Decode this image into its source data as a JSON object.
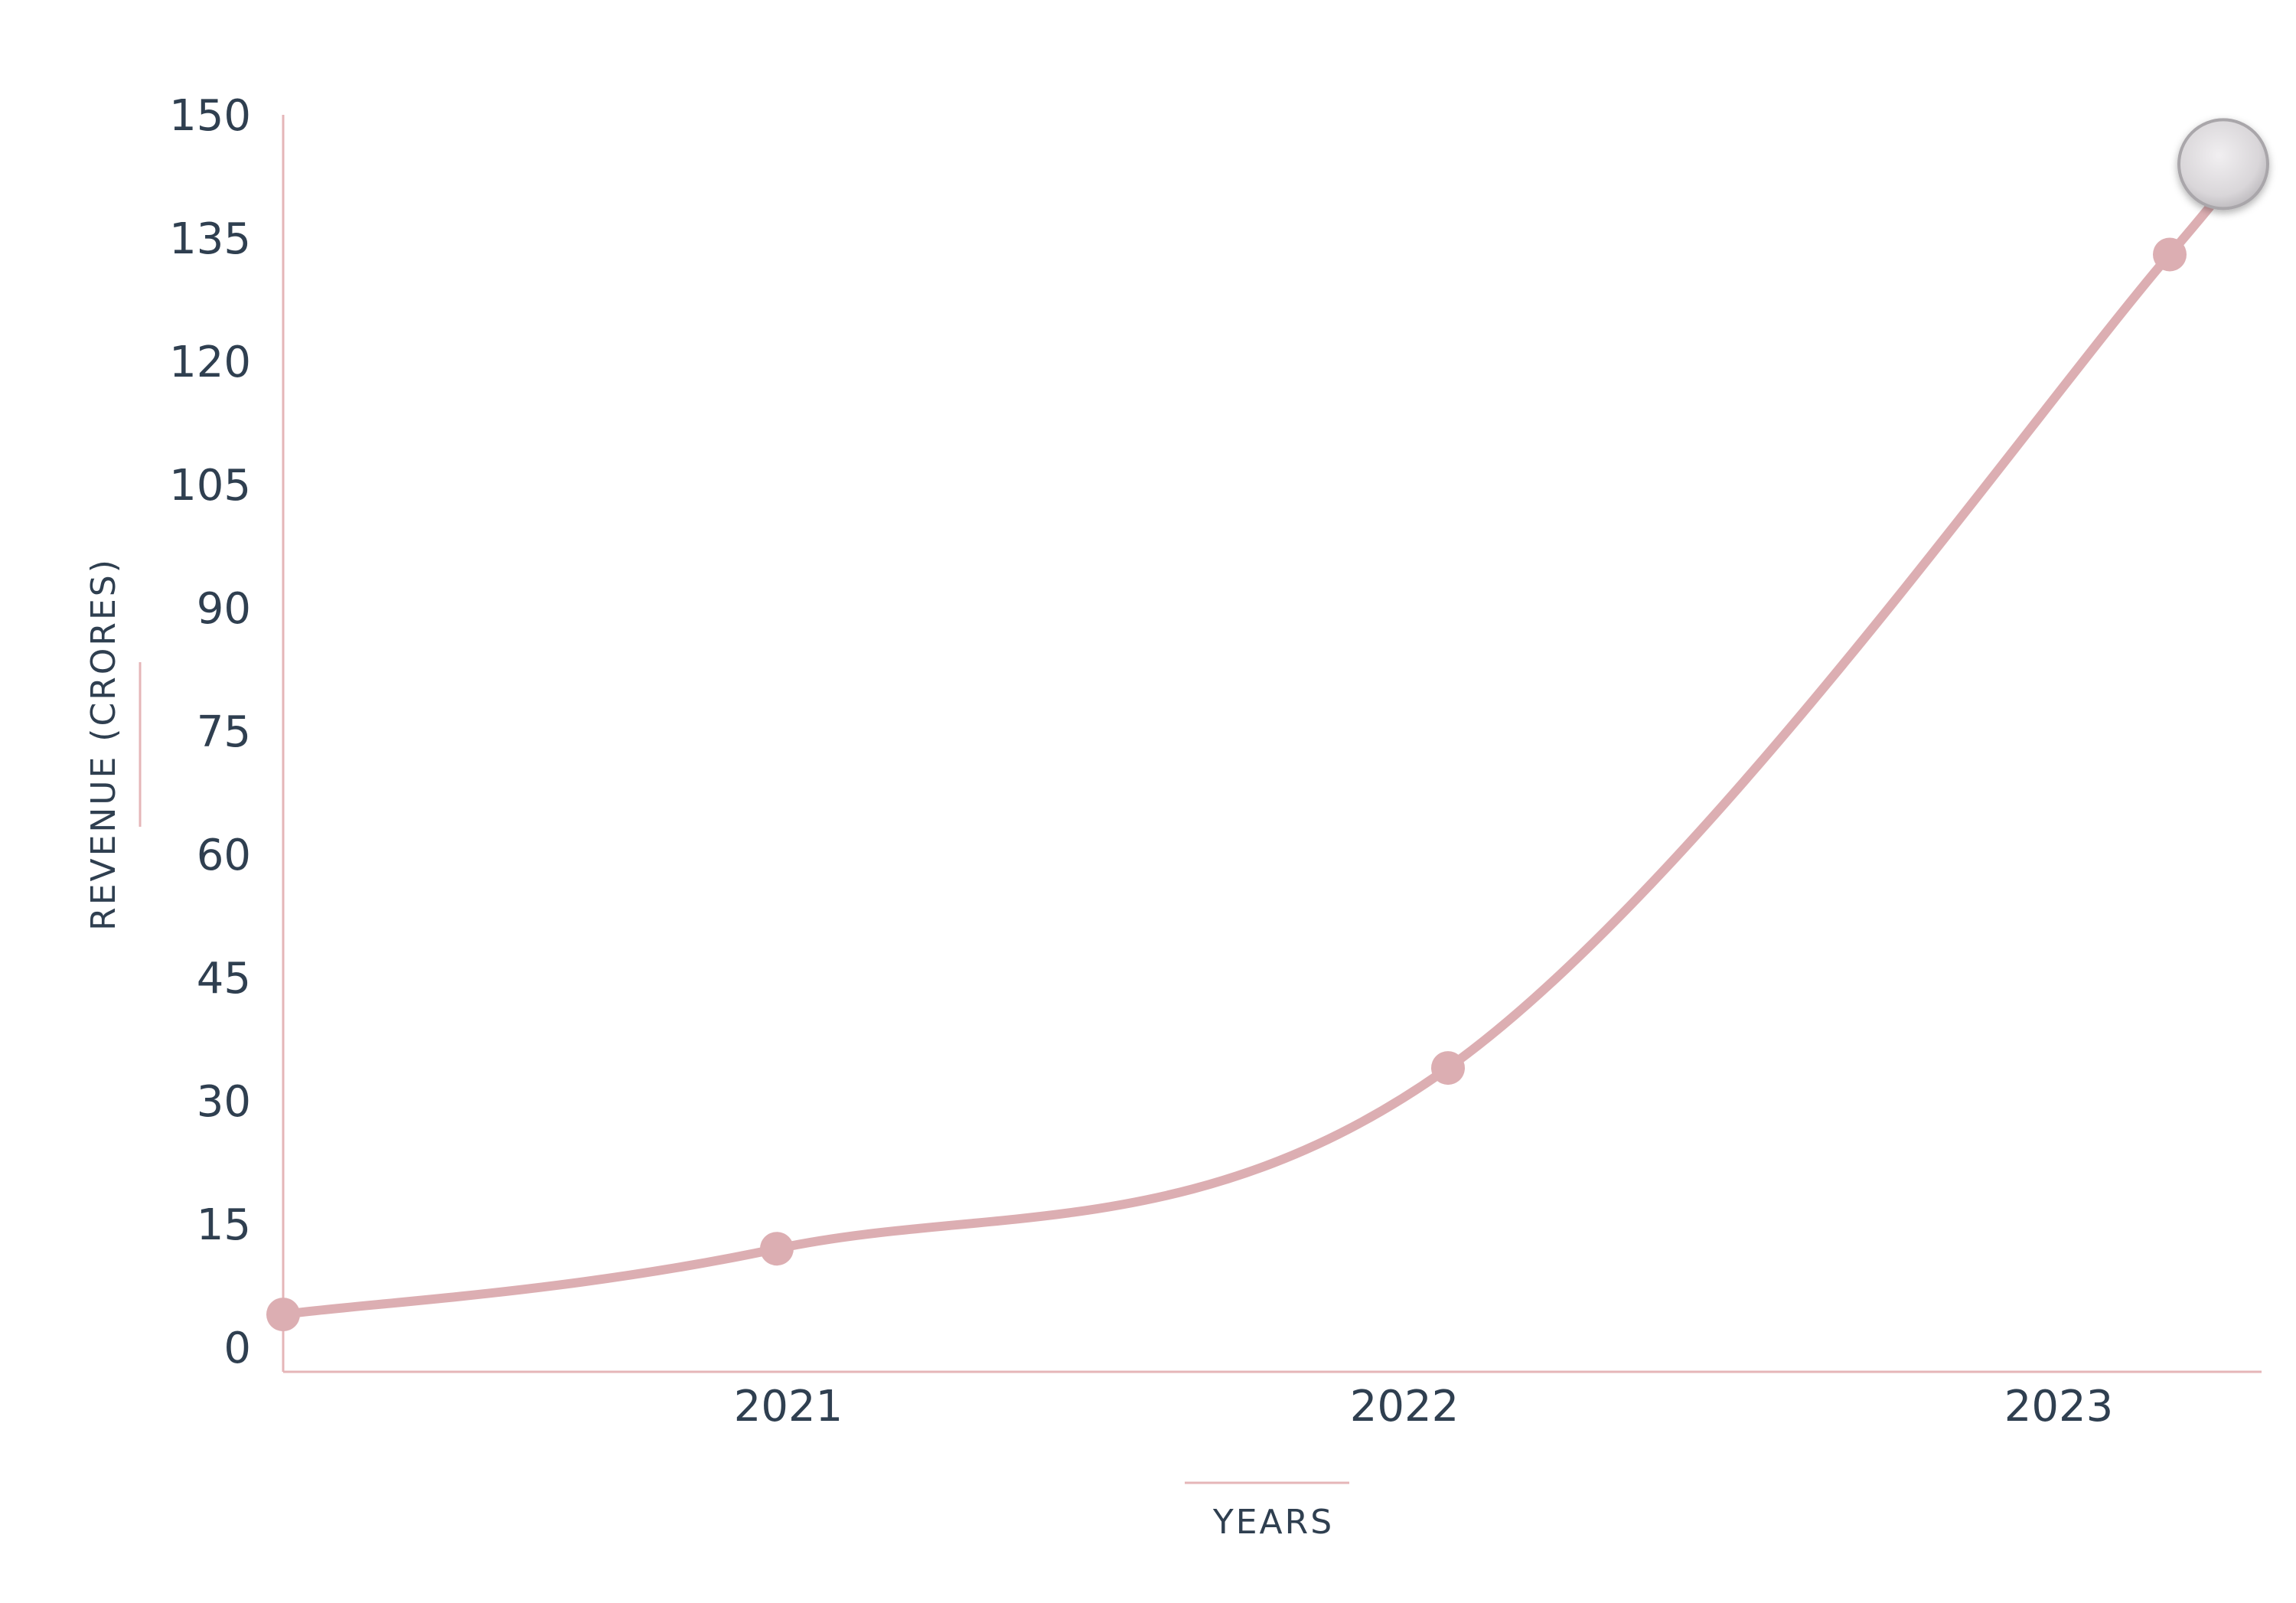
{
  "chart_data": {
    "type": "line",
    "xlabel": "YEARS",
    "ylabel": "REVENUE (CRORES)",
    "x_ticks": [
      "2021",
      "2022",
      "2023"
    ],
    "y_ticks": [
      "0",
      "15",
      "30",
      "45",
      "60",
      "75",
      "90",
      "105",
      "120",
      "135",
      "150"
    ],
    "ylim": [
      0,
      150
    ],
    "grid": false,
    "series": [
      {
        "color": "#dcaeb2",
        "points": [
          {
            "x": 2020.25,
            "y": 4
          },
          {
            "x": 2021.0,
            "y": 12
          },
          {
            "x": 2022.0,
            "y": 34
          },
          {
            "x": 2023.17,
            "y": 133
          },
          {
            "x": 2023.25,
            "y": 144
          }
        ]
      }
    ],
    "highlighted_point": {
      "x": 2023.25,
      "y": 144
    },
    "colors": {
      "line": "#dcaeb2",
      "axis": "#e5b6b8",
      "text": "#2f3f50",
      "marker_highlight": "#d8d5d8"
    }
  }
}
